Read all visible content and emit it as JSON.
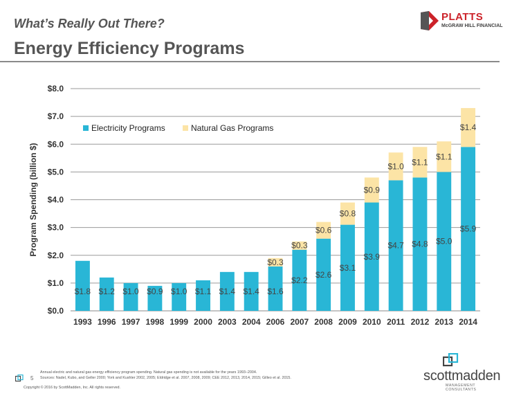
{
  "header": {
    "subtitle": "What’s Really Out There?",
    "title": "Energy Efficiency Programs"
  },
  "brand": {
    "platts_name": "PLATTS",
    "platts_sub": "McGRAW HILL FINANCIAL",
    "sm_name": "scottmadden",
    "sm_sub": "MANAGEMENT CONSULTANTS"
  },
  "colors": {
    "electricity": "#29B6D6",
    "gas": "#FCE4A6",
    "accent_red": "#cc2229"
  },
  "chart_data": {
    "type": "bar",
    "stacked": true,
    "title": "",
    "xlabel": "",
    "ylabel": "Program Spending (billion $)",
    "ylim": [
      0,
      8
    ],
    "yticks": [
      "$0.0",
      "$1.0",
      "$2.0",
      "$3.0",
      "$4.0",
      "$5.0",
      "$6.0",
      "$7.0",
      "$8.0"
    ],
    "grid": true,
    "legend_position": "top-left",
    "categories": [
      "1993",
      "1996",
      "1997",
      "1998",
      "1999",
      "2000",
      "2003",
      "2004",
      "2006",
      "2007",
      "2008",
      "2009",
      "2010",
      "2011",
      "2012",
      "2013",
      "2014"
    ],
    "series": [
      {
        "name": "Electricity Programs",
        "color": "#29B6D6",
        "values": [
          1.8,
          1.2,
          1.0,
          0.9,
          1.0,
          1.1,
          1.4,
          1.4,
          1.6,
          2.2,
          2.6,
          3.1,
          3.9,
          4.7,
          4.8,
          5.0,
          5.9
        ],
        "labels": [
          "$1.8",
          "$1.2",
          "$1.0",
          "$0.9",
          "$1.0",
          "$1.1",
          "$1.4",
          "$1.4",
          "$1.6",
          "$2.2",
          "$2.6",
          "$3.1",
          "$3.9",
          "$4.7",
          "$4.8",
          "$5.0",
          "$5.9"
        ]
      },
      {
        "name": "Natural Gas Programs",
        "color": "#FCE4A6",
        "values": [
          null,
          null,
          null,
          null,
          null,
          null,
          null,
          null,
          0.3,
          0.3,
          0.6,
          0.8,
          0.9,
          1.0,
          1.1,
          1.1,
          1.4
        ],
        "labels": [
          "",
          "",
          "",
          "",
          "",
          "",
          "",
          "",
          "$0.3",
          "$0.3",
          "$0.6",
          "$0.8",
          "$0.9",
          "$1.0",
          "$1.1",
          "$1.1",
          "$1.4"
        ]
      }
    ]
  },
  "footer": {
    "page_number": "5",
    "note_line1": "Annual electric and natural gas energy efficiency program spending. Natural gas spending is not available for the years 1993–2004.",
    "note_line2": "Sources: Nadel, Kubo, and Geller 2000; York and Kushler 2002, 2005; Eldridge et al. 2007, 2008, 2009; CEE 2012, 2013, 2014, 2015; Gilleo et al. 2015.",
    "copyright": "Copyright © 2016 by ScottMadden, Inc. All rights reserved."
  }
}
